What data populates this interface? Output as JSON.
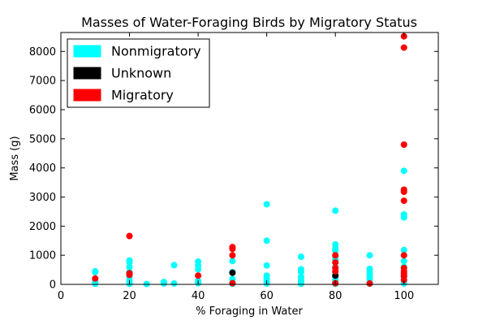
{
  "chart_data": {
    "type": "scatter",
    "title": "Masses of Water-Foraging Birds by Migratory Status",
    "xlabel": "% Foraging in Water",
    "ylabel": "Mass (g)",
    "xlim": [
      0,
      110
    ],
    "ylim": [
      0,
      8650
    ],
    "xticks": [
      0,
      20,
      40,
      60,
      80,
      100
    ],
    "yticks": [
      0,
      1000,
      2000,
      3000,
      4000,
      5000,
      6000,
      7000,
      8000
    ],
    "grid": false,
    "legend_position": "top-left",
    "series": [
      {
        "name": "Nonmigratory",
        "color": "#00ffff",
        "points": [
          [
            10,
            450
          ],
          [
            10,
            420
          ],
          [
            10,
            120
          ],
          [
            10,
            60
          ],
          [
            10,
            20
          ],
          [
            20,
            820
          ],
          [
            20,
            760
          ],
          [
            20,
            600
          ],
          [
            20,
            420
          ],
          [
            20,
            250
          ],
          [
            20,
            120
          ],
          [
            20,
            50
          ],
          [
            20,
            20
          ],
          [
            25,
            15
          ],
          [
            30,
            80
          ],
          [
            30,
            30
          ],
          [
            33,
            660
          ],
          [
            33,
            30
          ],
          [
            40,
            780
          ],
          [
            40,
            650
          ],
          [
            40,
            520
          ],
          [
            40,
            300
          ],
          [
            40,
            120
          ],
          [
            40,
            40
          ],
          [
            50,
            800
          ],
          [
            50,
            420
          ],
          [
            50,
            180
          ],
          [
            50,
            60
          ],
          [
            50,
            20
          ],
          [
            60,
            2750
          ],
          [
            60,
            1500
          ],
          [
            60,
            650
          ],
          [
            60,
            300
          ],
          [
            60,
            200
          ],
          [
            60,
            100
          ],
          [
            60,
            30
          ],
          [
            70,
            950
          ],
          [
            70,
            520
          ],
          [
            70,
            420
          ],
          [
            70,
            250
          ],
          [
            70,
            150
          ],
          [
            70,
            80
          ],
          [
            70,
            20
          ],
          [
            80,
            2530
          ],
          [
            80,
            1370
          ],
          [
            80,
            1230
          ],
          [
            80,
            1150
          ],
          [
            80,
            950
          ],
          [
            80,
            850
          ],
          [
            80,
            780
          ],
          [
            80,
            600
          ],
          [
            80,
            400
          ],
          [
            80,
            250
          ],
          [
            80,
            150
          ],
          [
            80,
            80
          ],
          [
            80,
            20
          ],
          [
            90,
            1000
          ],
          [
            90,
            530
          ],
          [
            90,
            420
          ],
          [
            90,
            300
          ],
          [
            90,
            180
          ],
          [
            90,
            60
          ],
          [
            90,
            20
          ],
          [
            100,
            3900
          ],
          [
            100,
            3200
          ],
          [
            100,
            2400
          ],
          [
            100,
            2300
          ],
          [
            100,
            1180
          ],
          [
            100,
            800
          ],
          [
            100,
            600
          ],
          [
            100,
            400
          ],
          [
            100,
            250
          ],
          [
            100,
            100
          ],
          [
            100,
            30
          ]
        ]
      },
      {
        "name": "Unknown",
        "color": "#000000",
        "points": [
          [
            20,
            380
          ],
          [
            50,
            400
          ],
          [
            80,
            300
          ],
          [
            100,
            300
          ]
        ]
      },
      {
        "name": "Migratory",
        "color": "#ff0000",
        "points": [
          [
            10,
            200
          ],
          [
            20,
            1660
          ],
          [
            20,
            380
          ],
          [
            20,
            330
          ],
          [
            40,
            300
          ],
          [
            50,
            1280
          ],
          [
            50,
            1220
          ],
          [
            50,
            1000
          ],
          [
            50,
            40
          ],
          [
            80,
            1000
          ],
          [
            80,
            750
          ],
          [
            80,
            560
          ],
          [
            80,
            450
          ],
          [
            80,
            40
          ],
          [
            90,
            30
          ],
          [
            100,
            8520
          ],
          [
            100,
            8130
          ],
          [
            100,
            4800
          ],
          [
            100,
            3250
          ],
          [
            100,
            3180
          ],
          [
            100,
            2870
          ],
          [
            100,
            1000
          ],
          [
            100,
            560
          ],
          [
            100,
            450
          ],
          [
            100,
            380
          ],
          [
            100,
            280
          ],
          [
            100,
            150
          ]
        ]
      }
    ]
  }
}
